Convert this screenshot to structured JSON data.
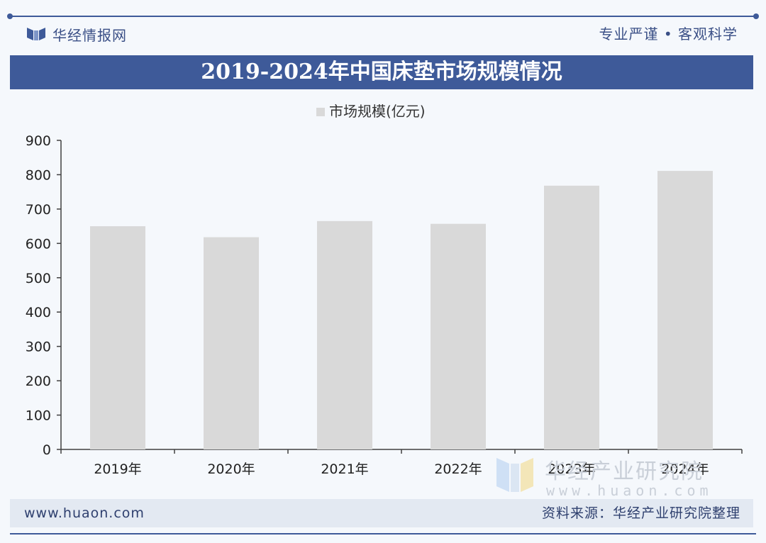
{
  "header": {
    "brand_name": "华经情报网",
    "slogan": "专业严谨 • 客观科学",
    "title": "2019-2024年中国床垫市场规模情况"
  },
  "footer": {
    "website": "www.huaon.com",
    "source": "资料来源：华经产业研究院整理"
  },
  "watermark": {
    "name": "华经产业研究院",
    "url": "www.huaon.com"
  },
  "colors": {
    "accent": "#3e5a99",
    "bar": "#d9d9d9",
    "axis": "#404040"
  },
  "chart_data": {
    "type": "bar",
    "title": "2019-2024年中国床垫市场规模情况",
    "legend_position": "top-center",
    "grid": false,
    "categories": [
      "2019年",
      "2020年",
      "2021年",
      "2022年",
      "2023年",
      "2024年"
    ],
    "series": [
      {
        "name": "市场规模(亿元)",
        "values": [
          650,
          618,
          665,
          657,
          768,
          811
        ]
      }
    ],
    "ylim": [
      0,
      900
    ],
    "yticks": [
      0,
      100,
      200,
      300,
      400,
      500,
      600,
      700,
      800,
      900
    ],
    "xlabel": "",
    "ylabel": ""
  }
}
